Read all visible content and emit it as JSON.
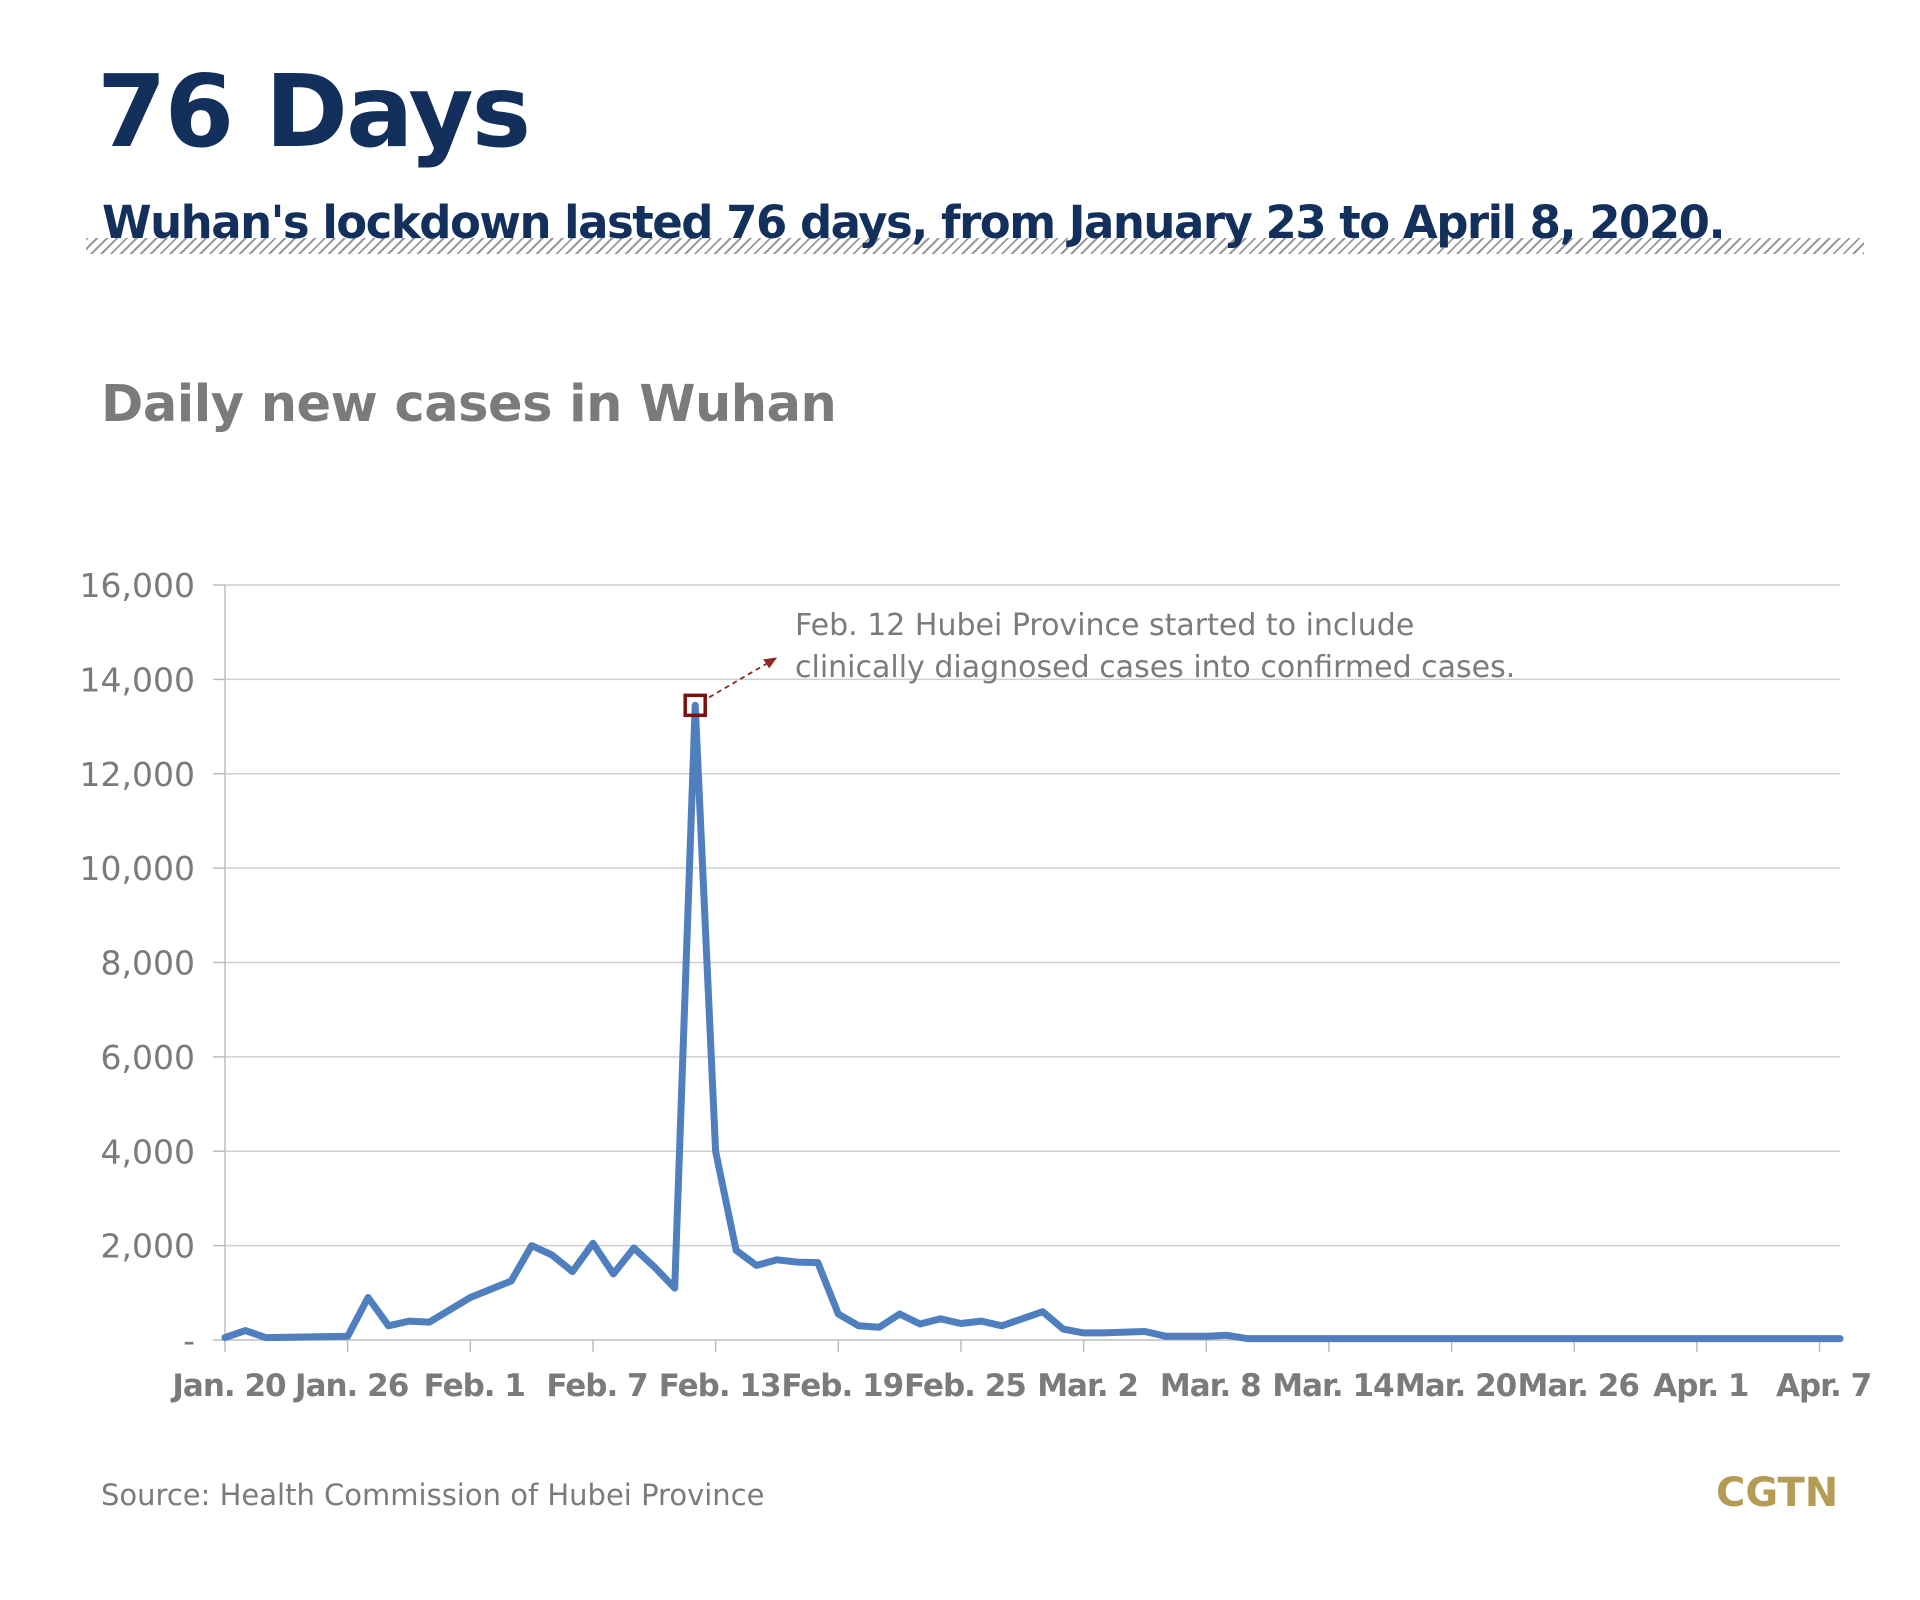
{
  "header": {
    "title": "76 Days",
    "subtitle": "Wuhan's lockdown lasted 76 days, from January 23 to April 8, 2020."
  },
  "chart_title": "Daily new cases in Wuhan",
  "source": "Source: Health Commission of Hubei Province",
  "logo": "CGTN",
  "colors": {
    "title": "#13305c",
    "line": "#4f7fbe",
    "annotation_box": "#7a1010",
    "logo": "#b59c55",
    "text_gray": "#7b7b7b"
  },
  "chart_data": {
    "type": "line",
    "title": "Daily new cases in Wuhan",
    "xlabel": "",
    "ylabel": "",
    "ylim": [
      0,
      16000
    ],
    "yticks": [
      0,
      2000,
      4000,
      6000,
      8000,
      10000,
      12000,
      14000,
      16000
    ],
    "ytick_labels": [
      "-",
      "2,000",
      "4,000",
      "6,000",
      "8,000",
      "10,000",
      "12,000",
      "14,000",
      "16,000"
    ],
    "x_start": "Jan. 20",
    "xlim_days": [
      0,
      79
    ],
    "xticks": [
      {
        "day": 0,
        "label": "Jan. 20"
      },
      {
        "day": 6,
        "label": "Jan. 26"
      },
      {
        "day": 12,
        "label": "Feb. 1"
      },
      {
        "day": 18,
        "label": "Feb. 7"
      },
      {
        "day": 24,
        "label": "Feb. 13"
      },
      {
        "day": 30,
        "label": "Feb. 19"
      },
      {
        "day": 36,
        "label": "Feb. 25"
      },
      {
        "day": 42,
        "label": "Mar. 2"
      },
      {
        "day": 48,
        "label": "Mar. 8"
      },
      {
        "day": 54,
        "label": "Mar. 14"
      },
      {
        "day": 60,
        "label": "Mar. 20"
      },
      {
        "day": 66,
        "label": "Mar. 26"
      },
      {
        "day": 72,
        "label": "Apr. 1"
      },
      {
        "day": 78,
        "label": "Apr. 7"
      }
    ],
    "grid": true,
    "series": [
      {
        "x": [
          0,
          1,
          2,
          6,
          7,
          8,
          9,
          10,
          12,
          14,
          15,
          16,
          17,
          18,
          19,
          20,
          21,
          22,
          23,
          24,
          25,
          26,
          27,
          28,
          29,
          30,
          31,
          32,
          33,
          34,
          35,
          36,
          37,
          38,
          40,
          41,
          42,
          43,
          45,
          46,
          47,
          48,
          49,
          50,
          79
        ],
        "values": [
          50,
          200,
          50,
          80,
          900,
          300,
          400,
          380,
          900,
          1250,
          2000,
          1800,
          1450,
          2050,
          1400,
          1950,
          1550,
          1100,
          13450,
          4000,
          1900,
          1580,
          1700,
          1650,
          1640,
          550,
          300,
          270,
          550,
          340,
          450,
          350,
          400,
          300,
          600,
          230,
          150,
          150,
          180,
          80,
          80,
          80,
          100,
          30,
          30
        ]
      }
    ],
    "annotation": {
      "target": "Feb. 12",
      "text_lines": [
        "Feb. 12 Hubei Province started to include",
        "clinically diagnosed cases into confirmed cases."
      ]
    }
  }
}
